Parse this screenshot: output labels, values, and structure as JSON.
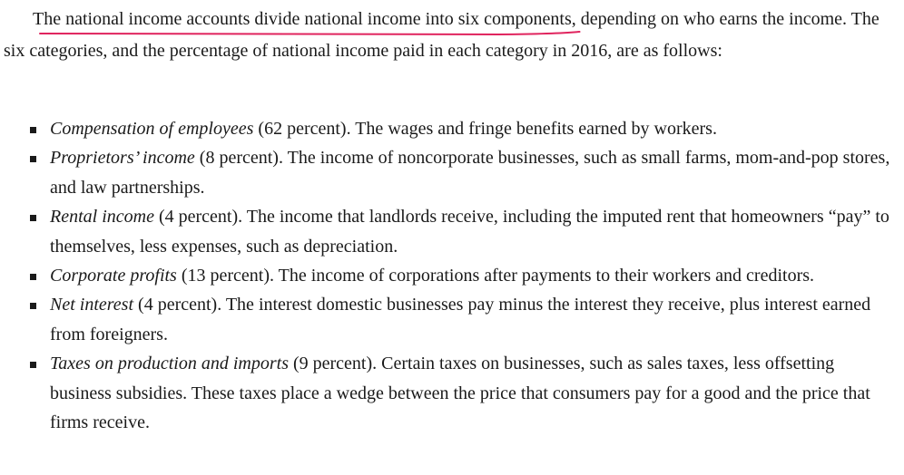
{
  "intro": {
    "lead_letter": "T",
    "highlighted": "he national income accounts divide national income into six components,",
    "rest": " depending on who earns the income. The six categories, and the percentage of national income paid in each category in 2016, are as follows:"
  },
  "highlight_color": "#e0245e",
  "items": [
    {
      "term": "Compensation of employees",
      "percent": " (62 percent). ",
      "desc": "The wages and fringe benefits earned by workers."
    },
    {
      "term": "Proprietors’ income",
      "percent": " (8 percent). ",
      "desc": "The income of noncorporate businesses, such as small farms, mom-and-pop stores, and law partnerships."
    },
    {
      "term": "Rental income",
      "percent": " (4 percent). ",
      "desc": "The income that landlords receive, including the imputed rent that homeowners “pay” to themselves, less expenses, such as depreciation."
    },
    {
      "term": "Corporate profits",
      "percent": " (13 percent). ",
      "desc": "The income of corporations after payments to their workers and creditors."
    },
    {
      "term": "Net interest",
      "percent": " (4 percent). ",
      "desc": "The interest domestic businesses pay minus the interest they receive, plus interest earned from foreigners."
    },
    {
      "term": "Taxes on production and imports",
      "percent": " (9 percent). ",
      "desc": "Certain taxes on businesses, such as sales taxes, less offsetting business subsidies. These taxes place a wedge between the price that consumers pay for a good and the price that firms receive."
    }
  ]
}
